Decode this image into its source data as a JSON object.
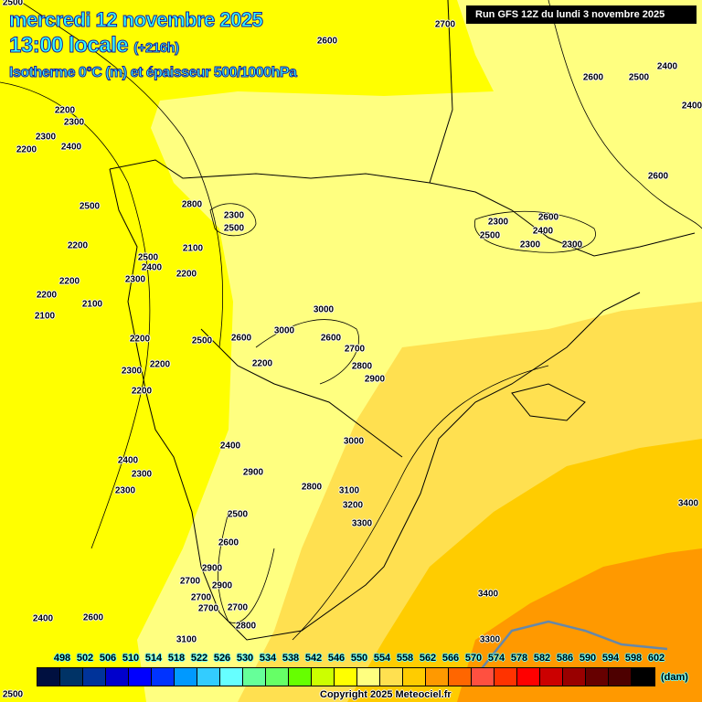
{
  "header": {
    "date": "mercredi 12 novembre 2025",
    "time": "13:00 locale",
    "lead": "(+216h)",
    "parameter": "Isotherme 0°C (m) et épaisseur 500/1000hPa",
    "run": "Run GFS 12Z du lundi 3 novembre 2025"
  },
  "contour_labels": [
    "2500",
    "2700",
    "2600",
    "2400",
    "2600",
    "2500",
    "2400",
    "2200",
    "2300",
    "2300",
    "2400",
    "2200",
    "2600",
    "2800",
    "2500",
    "2300",
    "2500",
    "2300",
    "2600",
    "2400",
    "2500",
    "2300",
    "2300",
    "2100",
    "2200",
    "2500",
    "2400",
    "2300",
    "2200",
    "2200",
    "2200",
    "2100",
    "2100",
    "3000",
    "3000",
    "2600",
    "2600",
    "2200",
    "2500",
    "2700",
    "2200",
    "2300",
    "2200",
    "2800",
    "2900",
    "2200",
    "3000",
    "2400",
    "2400",
    "2300",
    "2900",
    "2800",
    "2300",
    "3100",
    "3200",
    "3400",
    "2500",
    "3300",
    "2600",
    "2900",
    "2700",
    "2900",
    "3400",
    "2700",
    "2700",
    "2700",
    "2400",
    "2600",
    "2800",
    "3100",
    "3300",
    "2500"
  ],
  "legend": {
    "values": [
      "498",
      "502",
      "506",
      "510",
      "514",
      "518",
      "522",
      "526",
      "530",
      "534",
      "538",
      "542",
      "546",
      "550",
      "554",
      "558",
      "562",
      "566",
      "570",
      "574",
      "578",
      "582",
      "586",
      "590",
      "594",
      "598",
      "602"
    ],
    "colors": [
      "#001040",
      "#003366",
      "#003399",
      "#0000cc",
      "#0000ff",
      "#0033ff",
      "#0099ff",
      "#33ccff",
      "#66ffff",
      "#66ff99",
      "#66ff66",
      "#66ff00",
      "#ccff00",
      "#ffff00",
      "#ffff80",
      "#ffe050",
      "#ffcc00",
      "#ff9900",
      "#ff6600",
      "#ff5040",
      "#ff3300",
      "#ff0000",
      "#cc0000",
      "#990000",
      "#660000",
      "#4d0000",
      "#000000"
    ],
    "unit": "(dam)"
  },
  "copyright": "Copyright 2025 Meteociel.fr"
}
